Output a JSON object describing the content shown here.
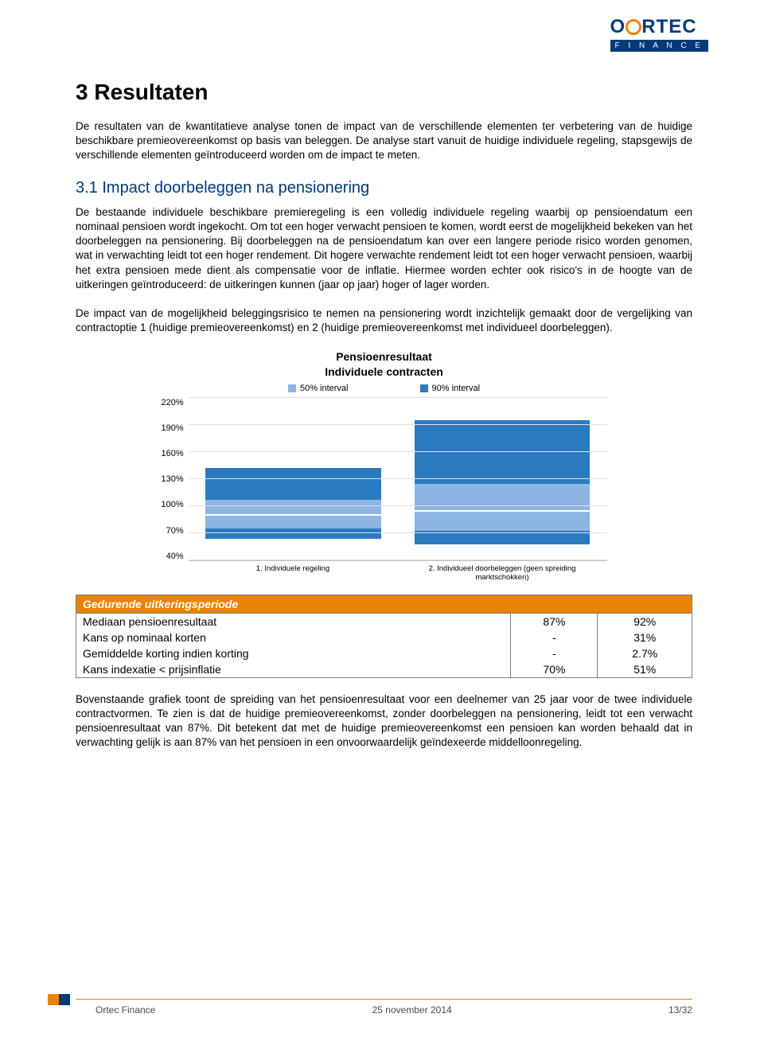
{
  "logo": {
    "main_prefix": "O",
    "main_rest": "RTEC",
    "sub": "F I N A N C E",
    "main_color": "#003a7a",
    "accent_color": "#e98300"
  },
  "h1": "3 Resultaten",
  "intro": "De resultaten van de kwantitatieve analyse tonen de impact van de verschillende elementen ter verbetering van de huidige beschikbare premieovereenkomst op basis van beleggen. De analyse start vanuit de huidige individuele regeling, stapsgewijs de verschillende elementen geïntroduceerd worden om de impact te meten.",
  "h2": "3.1 Impact doorbeleggen na pensionering",
  "para1": "De bestaande individuele beschikbare premieregeling is een volledig individuele regeling waarbij op pensioendatum een nominaal pensioen wordt ingekocht. Om tot een hoger verwacht pensioen te komen, wordt eerst de mogelijkheid bekeken van het doorbeleggen na pensionering. Bij doorbeleggen na de pensioendatum kan over een langere periode risico worden genomen, wat in verwachting leidt tot een hoger rendement. Dit hogere verwachte rendement leidt tot een hoger verwacht pensioen, waarbij het extra pensioen mede dient als compensatie voor de inflatie. Hiermee worden echter ook risico's in de hoogte van de uitkeringen geïntroduceerd: de uitkeringen kunnen (jaar op jaar) hoger of lager worden.",
  "para2": "De impact van de mogelijkheid beleggingsrisico te nemen na pensionering wordt inzichtelijk gemaakt door de vergelijking van contractoptie 1 (huidige premieovereenkomst) en 2 (huidige premieovereenkomst met individueel doorbeleggen).",
  "chart": {
    "title_line1": "Pensioenresultaat",
    "title_line2": "Individuele contracten",
    "legend50": "50% interval",
    "legend90": "90% interval",
    "color50": "#8db4e2",
    "color90": "#2a7ac0",
    "grid_color": "#e0e0e0",
    "axis_color": "#bfbfbf",
    "ymin": 40,
    "ymax": 220,
    "ystep": 30,
    "yticks": [
      "220%",
      "190%",
      "160%",
      "130%",
      "100%",
      "70%",
      "40%"
    ],
    "categories": [
      {
        "label": "1. Individuele regeling",
        "p90_lo": 62,
        "p90_hi": 140,
        "p50_lo": 73,
        "p50_hi": 105,
        "median": 87
      },
      {
        "label": "2. Individueel doorbeleggen (geen spreiding marktschokken)",
        "p90_lo": 56,
        "p90_hi": 194,
        "p50_lo": 71,
        "p50_hi": 123,
        "median": 92
      }
    ]
  },
  "table": {
    "header": "Gedurende uitkeringsperiode",
    "rows": [
      {
        "label": "Mediaan pensioenresultaat",
        "c1": "87%",
        "c2": "92%"
      },
      {
        "label": "Kans op nominaal korten",
        "c1": "-",
        "c2": "31%"
      },
      {
        "label": "Gemiddelde korting indien korting",
        "c1": "-",
        "c2": "2.7%"
      },
      {
        "label": "Kans indexatie < prijsinflatie",
        "c1": "70%",
        "c2": "51%"
      }
    ]
  },
  "closing": "Bovenstaande grafiek toont de spreiding van het pensioenresultaat voor een deelnemer van 25 jaar voor de twee individuele contractvormen. Te zien is dat de huidige premieovereenkomst, zonder doorbeleggen na pensionering, leidt tot een verwacht pensioenresultaat van 87%. Dit betekent dat met de huidige premieovereenkomst een pensioen kan worden behaald dat in verwachting gelijk is aan 87% van het pensioen in een onvoorwaardelijk geïndexeerde middelloonregeling.",
  "footer": {
    "left": "Ortec Finance",
    "center": "25 november 2014",
    "right": "13/32",
    "line_color": "#e98300",
    "block1": "#e98300",
    "block2": "#003a7a"
  }
}
